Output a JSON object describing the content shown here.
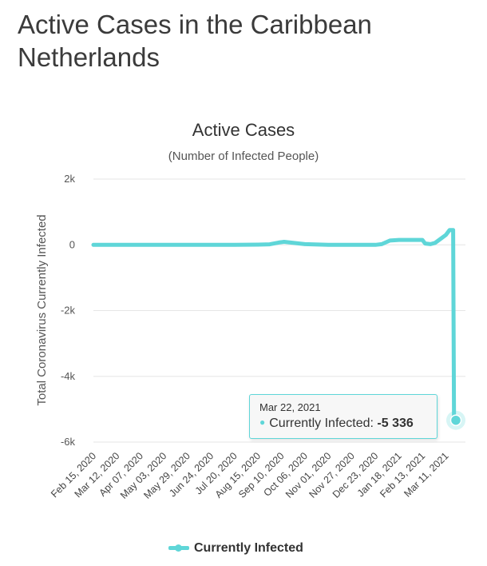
{
  "page": {
    "title": "Active Cases in the Caribbean Netherlands"
  },
  "tooltip": {
    "date": "Mar 22, 2021",
    "series_name": "Currently Infected",
    "value_label": "-5 336"
  },
  "legend": {
    "label": "Currently Infected"
  },
  "colors": {
    "series": "#5fd6d8",
    "grid": "#e6e6e6",
    "tooltip_border": "#5fd6d8"
  },
  "chart_data": {
    "type": "line",
    "title": "Active Cases",
    "subtitle": "(Number of Infected People)",
    "ylabel": "Total Coronavirus Currently Infected",
    "xlabel": "",
    "ylim": [
      -6000,
      2000
    ],
    "y_ticks": [
      2000,
      0,
      -2000,
      -4000,
      -6000
    ],
    "y_tick_labels": [
      "2k",
      "0",
      "-2k",
      "-4k",
      "-6k"
    ],
    "x_tick_labels": [
      "Feb 15, 2020",
      "Mar 12, 2020",
      "Apr 07, 2020",
      "May 03, 2020",
      "May 29, 2020",
      "Jun 24, 2020",
      "Jul 20, 2020",
      "Aug 15, 2020",
      "Sep 10, 2020",
      "Oct 06, 2020",
      "Nov 01, 2020",
      "Nov 27, 2020",
      "Dec 23, 2020",
      "Jan 18, 2021",
      "Feb 13, 2021",
      "Mar 11, 2021"
    ],
    "grid": true,
    "legend_position": "bottom",
    "series": [
      {
        "name": "Currently Infected",
        "x": [
          "Feb 15, 2020",
          "Mar 12, 2020",
          "Apr 07, 2020",
          "May 03, 2020",
          "May 29, 2020",
          "Jun 24, 2020",
          "Jul 20, 2020",
          "Aug 15, 2020",
          "Aug 28, 2020",
          "Sep 07, 2020",
          "Sep 13, 2020",
          "Sep 20, 2020",
          "Oct 06, 2020",
          "Nov 01, 2020",
          "Nov 27, 2020",
          "Dec 23, 2020",
          "Dec 30, 2020",
          "Jan 08, 2021",
          "Jan 18, 2021",
          "Feb 13, 2021",
          "Feb 16, 2021",
          "Feb 22, 2021",
          "Feb 27, 2021",
          "Mar 05, 2021",
          "Mar 11, 2021",
          "Mar 15, 2021",
          "Mar 19, 2021",
          "Mar 20, 2021",
          "Mar 22, 2021"
        ],
        "values": [
          0,
          0,
          0,
          0,
          0,
          0,
          0,
          5,
          15,
          70,
          90,
          70,
          20,
          0,
          0,
          0,
          20,
          130,
          150,
          150,
          40,
          20,
          60,
          180,
          300,
          450,
          450,
          -5336,
          -5336
        ]
      }
    ]
  }
}
